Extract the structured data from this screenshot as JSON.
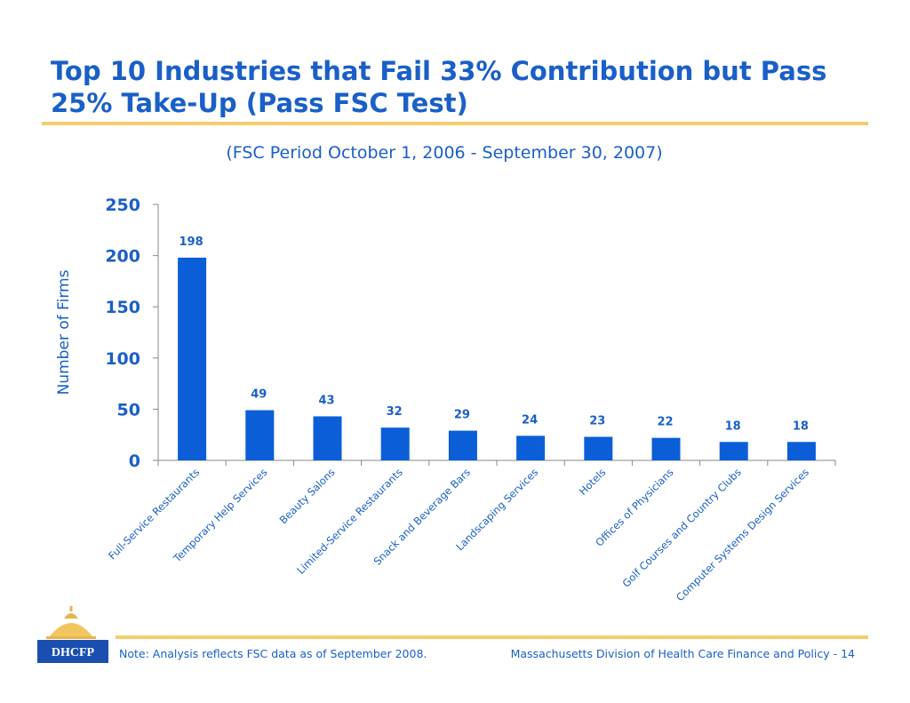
{
  "slide": {
    "title": "Top 10 Industries that Fail 33% Contribution but Pass 25% Take-Up (Pass FSC Test)",
    "subtitle": "(FSC Period October 1, 2006 - September 30, 2007)"
  },
  "chart_data": {
    "type": "bar",
    "categories": [
      "Full-Service Restaurants",
      "Temporary Help Services",
      "Beauty Salons",
      "Limited-Service Restaurants",
      "Snack and Beverage Bars",
      "Landscaping Services",
      "Hotels",
      "Offices of Physicians",
      "Golf Courses and Country Clubs",
      "Computer Systems Design Services"
    ],
    "values": [
      198,
      49,
      43,
      32,
      29,
      24,
      23,
      22,
      18,
      18
    ],
    "ylabel": "Number of Firms",
    "xlabel": "",
    "ylim": [
      0,
      250
    ],
    "yticks": [
      0,
      50,
      100,
      150,
      200,
      250
    ],
    "grid": false,
    "legend": "none",
    "data_labels": true
  },
  "colors": {
    "accent": "#1a5fc8",
    "bar": "#0b5ed7",
    "rule": "#f5cd6e",
    "logo_box": "#1a4fb0"
  },
  "footer": {
    "note": "Note: Analysis reflects FSC data as of September 2008.",
    "source": "Massachusetts Division of Health Care Finance and Policy - 14"
  },
  "logo": {
    "text": "DHCFP",
    "icon": "state-house-dome-icon"
  }
}
